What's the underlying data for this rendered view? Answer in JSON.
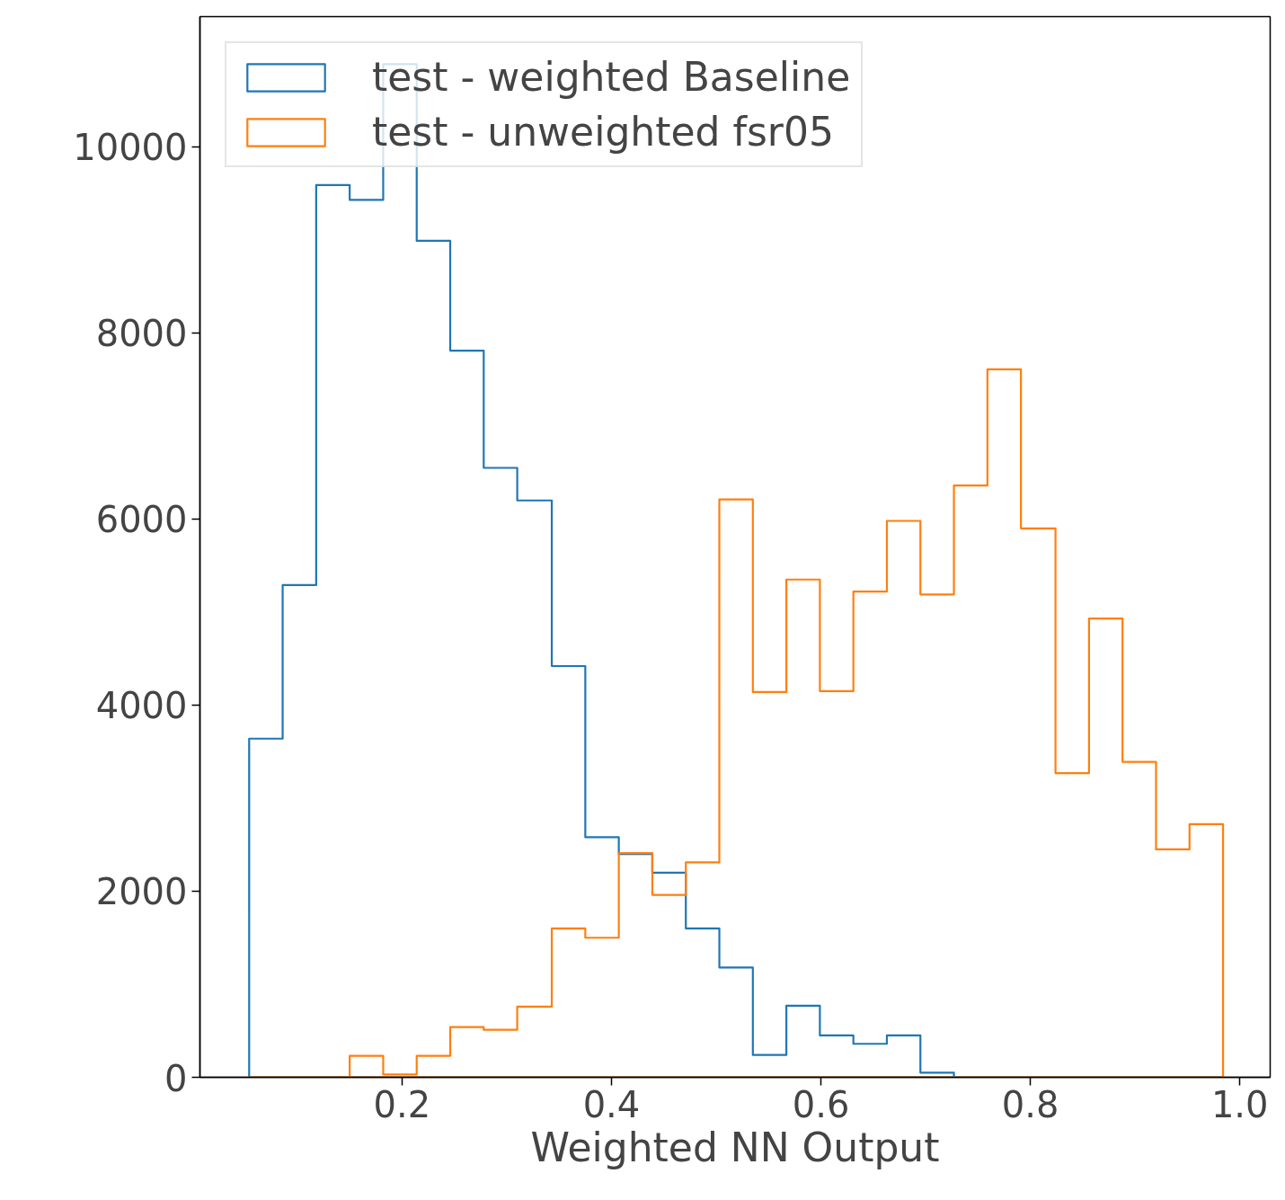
{
  "chart_data": {
    "type": "histogram",
    "xlabel": "Weighted NN Output",
    "bins": [
      0.054,
      0.086,
      0.118,
      0.15,
      0.182,
      0.214,
      0.246,
      0.278,
      0.31,
      0.343,
      0.375,
      0.407,
      0.439,
      0.471,
      0.503,
      0.535,
      0.567,
      0.599,
      0.631,
      0.663,
      0.695,
      0.727,
      0.759,
      0.791,
      0.824,
      0.856,
      0.888,
      0.92,
      0.952,
      0.984
    ],
    "series": [
      {
        "name": "test - weighted Baseline",
        "color": "#1f77b4",
        "values": [
          3640,
          5290,
          9590,
          9430,
          10890,
          8990,
          7810,
          6550,
          6200,
          4420,
          2580,
          2400,
          2200,
          1600,
          1180,
          240,
          770,
          450,
          360,
          450,
          50,
          0,
          0,
          0,
          0,
          0,
          0,
          0,
          0
        ]
      },
      {
        "name": "test - unweighted fsr05",
        "color": "#ff7f0e",
        "values": [
          0,
          0,
          0,
          230,
          30,
          230,
          540,
          510,
          760,
          1600,
          1500,
          2410,
          1960,
          2310,
          6210,
          4140,
          5350,
          4150,
          5220,
          5980,
          5190,
          6360,
          7610,
          5900,
          3270,
          4930,
          3390,
          2450,
          2720
        ]
      }
    ],
    "xlim": [
      0.007,
      1.029
    ],
    "ylim": [
      0,
      11400
    ],
    "xticks": [
      0.2,
      0.4,
      0.6,
      0.8,
      {
        "value": 1.0,
        "label": "1.0"
      }
    ],
    "yticks": [
      0,
      2000,
      4000,
      6000,
      8000,
      10000
    ],
    "grid": false,
    "legend": "top left"
  }
}
